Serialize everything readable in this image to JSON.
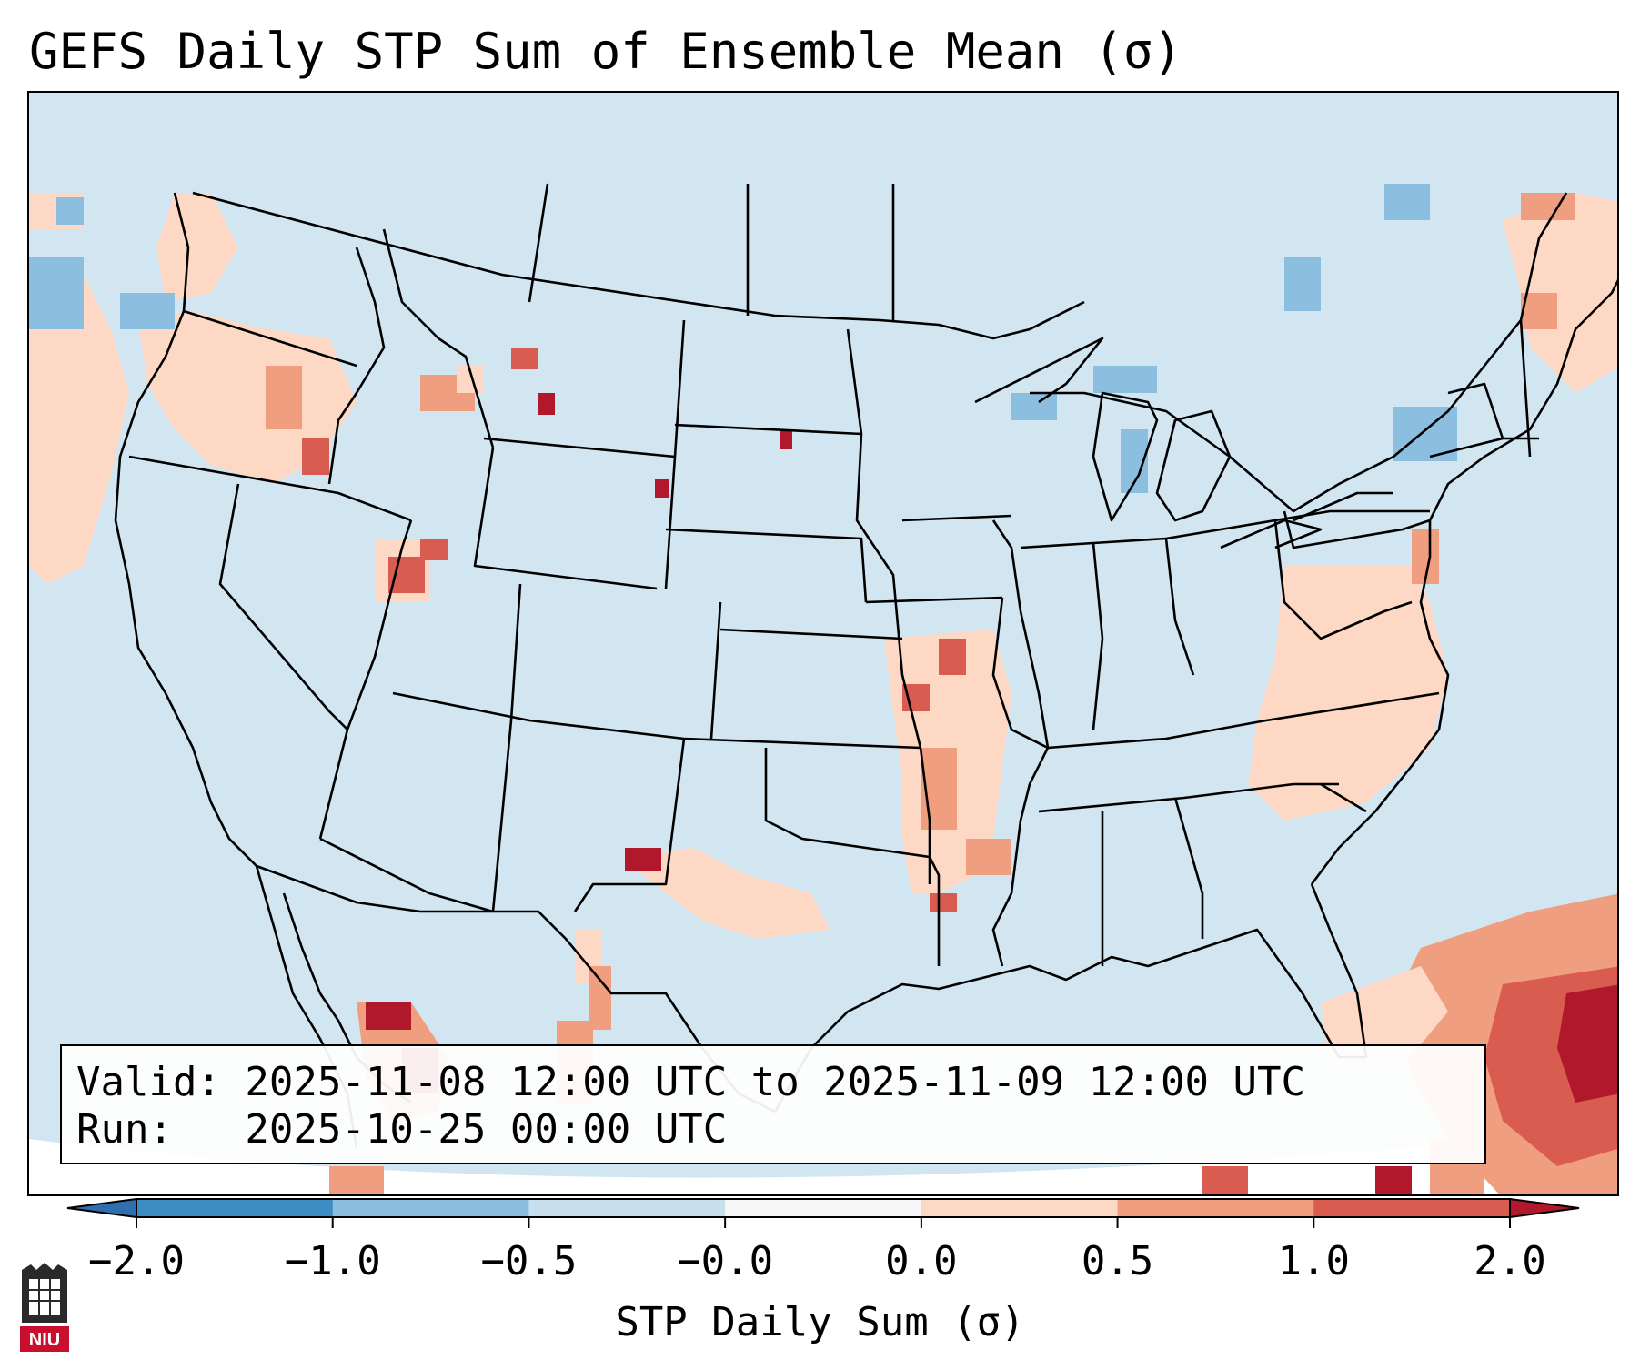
{
  "title": "GEFS Daily STP Sum of Ensemble Mean (σ)",
  "info": {
    "valid_line": "Valid: 2025-11-08 12:00 UTC to 2025-11-09 12:00 UTC",
    "run_line": "Run:   2025-10-25 00:00 UTC"
  },
  "colorbar": {
    "label": "STP Daily Sum (σ)",
    "ticks": [
      "−2.0",
      "−1.0",
      "−0.5",
      "−0.0",
      "0.0",
      "0.5",
      "1.0",
      "2.0"
    ],
    "colors": [
      "#3d8cc3",
      "#8cbfdf",
      "#c8dfee",
      "#f7f7f7",
      "#fdd9c5",
      "#f09e80",
      "#d85c4f"
    ],
    "extend_colors": {
      "low": "#2f6fae",
      "high": "#b1182b"
    }
  },
  "map": {
    "projection": "Lambert conformal, contiguous United States",
    "background_color": "#d2e6f1"
  },
  "logo": {
    "text": "NIU",
    "color": "#c8102e"
  }
}
